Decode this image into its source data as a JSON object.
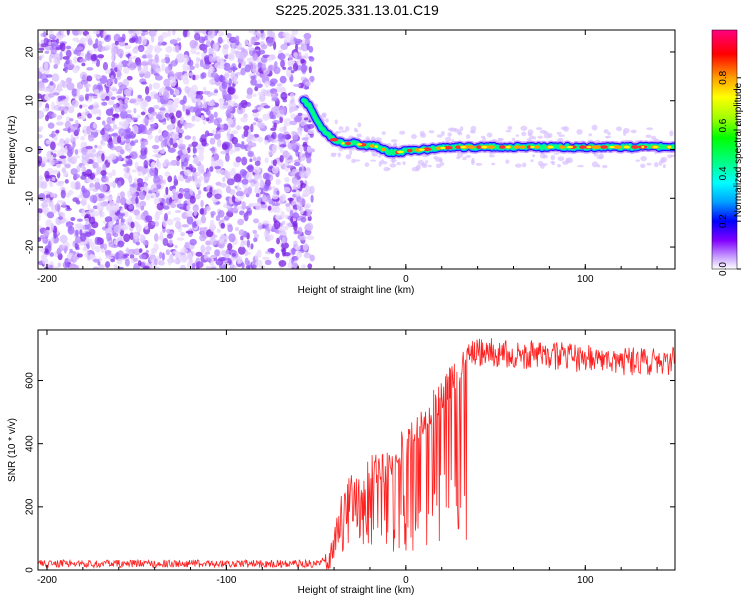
{
  "title": "S225.2025.331.13.01.C19",
  "chart_data": [
    {
      "type": "heatmap",
      "title": "",
      "xlabel": "Height of straight line (km)",
      "ylabel": "Frequency (Hz)",
      "xlim": [
        -205,
        150
      ],
      "ylim": [
        -24.5,
        24.5
      ],
      "x_ticks": [
        -200,
        -100,
        0,
        100
      ],
      "y_ticks": [
        -20,
        -10,
        0,
        10,
        20
      ],
      "colorbar": {
        "label": "Normalized spectral amplitude",
        "range": [
          0,
          1
        ],
        "ticks": [
          0.0,
          0.2,
          0.4,
          0.6,
          0.8
        ],
        "colors": [
          "#ffffff",
          "#c8a0ff",
          "#8000ff",
          "#0000ff",
          "#00a0ff",
          "#00ffff",
          "#00ff80",
          "#00ff00",
          "#a0ff00",
          "#ffff00",
          "#ffa000",
          "#ff0000",
          "#ff0080"
        ]
      },
      "noise_region": {
        "x": [
          -205,
          -52
        ],
        "y": [
          -24.5,
          24.5
        ],
        "amplitude": [
          0.0,
          0.2
        ]
      },
      "signal_track": {
        "x": [
          -57,
          -54,
          -50,
          -46,
          -42,
          -38,
          -34,
          -30,
          -25,
          -20,
          -15,
          -10,
          -5,
          0,
          10,
          20,
          30,
          40,
          60,
          80,
          100,
          120,
          150
        ],
        "y": [
          10,
          9,
          6,
          4,
          2.5,
          1.5,
          1.2,
          1.3,
          1.0,
          0.8,
          0.5,
          -0.5,
          -0.6,
          -0.3,
          0,
          0.3,
          0.5,
          0.5,
          0.5,
          0.5,
          0.5,
          0.5,
          0.5
        ]
      }
    },
    {
      "type": "line",
      "title": "",
      "xlabel": "Height of straight line (km)",
      "ylabel": "SNR (10 * v/v)",
      "xlim": [
        -205,
        150
      ],
      "ylim": [
        0,
        760
      ],
      "x_ticks": [
        -200,
        -100,
        0,
        100
      ],
      "y_ticks": [
        0,
        200,
        400,
        600
      ],
      "color": "#ff2020",
      "series": [
        {
          "name": "",
          "x": [
            -205,
            -100,
            -50,
            -42,
            -38,
            -35,
            -30,
            -25,
            -20,
            -15,
            -10,
            -5,
            0,
            5,
            10,
            15,
            20,
            25,
            30,
            35,
            40,
            50,
            60,
            80,
            100,
            120,
            150
          ],
          "y": [
            20,
            20,
            20,
            40,
            120,
            200,
            250,
            280,
            300,
            330,
            340,
            370,
            390,
            430,
            470,
            520,
            560,
            600,
            650,
            680,
            690,
            690,
            680,
            680,
            670,
            660,
            660
          ]
        }
      ],
      "spikes_down": {
        "x_range": [
          -38,
          35
        ],
        "min_y": 50
      }
    }
  ]
}
